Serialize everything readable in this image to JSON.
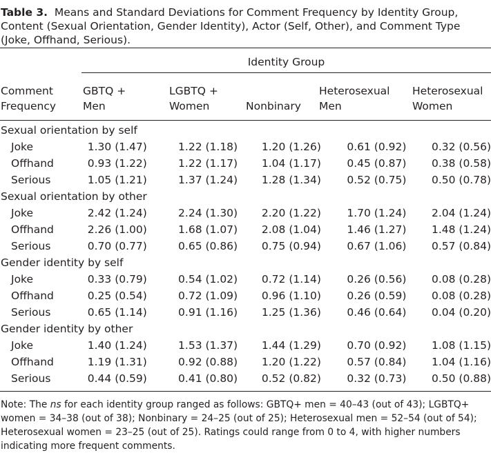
{
  "caption": {
    "label": "Table 3.",
    "text": "Means and Standard Deviations for Comment Frequency by Identity Group, Content (Sexual Orientation, Gender Identity), Actor (Self, Other), and Comment Type (Joke, Offhand, Serious)."
  },
  "header": {
    "group_title": "Identity Group",
    "row_header": [
      "Comment",
      "Frequency"
    ],
    "columns": [
      [
        "GBTQ +",
        "Men"
      ],
      [
        "LGBTQ +",
        "Women"
      ],
      [
        "",
        "Nonbinary"
      ],
      [
        "Heterosexual",
        "Men"
      ],
      [
        "Heterosexual",
        "Women"
      ]
    ]
  },
  "sections": [
    {
      "title": "Sexual orientation by self",
      "rows": [
        {
          "label": "Joke",
          "values": [
            "1.30 (1.47)",
            "1.22 (1.18)",
            "1.20 (1.26)",
            "0.61 (0.92)",
            "0.32 (0.56)"
          ]
        },
        {
          "label": "Offhand",
          "values": [
            "0.93 (1.22)",
            "1.22 (1.17)",
            "1.04 (1.17)",
            "0.45 (0.87)",
            "0.38 (0.58)"
          ]
        },
        {
          "label": "Serious",
          "values": [
            "1.05 (1.21)",
            "1.37 (1.24)",
            "1.28 (1.34)",
            "0.52 (0.75)",
            "0.50 (0.78)"
          ]
        }
      ]
    },
    {
      "title": "Sexual orientation by other",
      "rows": [
        {
          "label": "Joke",
          "values": [
            "2.42 (1.24)",
            "2.24 (1.30)",
            "2.20 (1.22)",
            "1.70 (1.24)",
            "2.04 (1.24)"
          ]
        },
        {
          "label": "Offhand",
          "values": [
            "2.26 (1.00)",
            "1.68 (1.07)",
            "2.08 (1.04)",
            "1.46 (1.27)",
            "1.48 (1.24)"
          ]
        },
        {
          "label": "Serious",
          "values": [
            "0.70 (0.77)",
            "0.65 (0.86)",
            "0.75 (0.94)",
            "0.67 (1.06)",
            "0.57 (0.84)"
          ]
        }
      ]
    },
    {
      "title": "Gender identity by self",
      "rows": [
        {
          "label": "Joke",
          "values": [
            "0.33 (0.79)",
            "0.54 (1.02)",
            "0.72 (1.14)",
            "0.26 (0.56)",
            "0.08 (0.28)"
          ]
        },
        {
          "label": "Offhand",
          "values": [
            "0.25 (0.54)",
            "0.72 (1.09)",
            "0.96 (1.10)",
            "0.26 (0.59)",
            "0.08 (0.28)"
          ]
        },
        {
          "label": "Serious",
          "values": [
            "0.65 (1.14)",
            "0.91 (1.16)",
            "1.25 (1.36)",
            "0.46 (0.64)",
            "0.04 (0.20)"
          ]
        }
      ]
    },
    {
      "title": "Gender identity by other",
      "rows": [
        {
          "label": "Joke",
          "values": [
            "1.40 (1.24)",
            "1.53 (1.37)",
            "1.44 (1.29)",
            "0.70 (0.92)",
            "1.08 (1.15)"
          ]
        },
        {
          "label": "Offhand",
          "values": [
            "1.19 (1.31)",
            "0.92 (0.88)",
            "1.20 (1.22)",
            "0.57 (0.84)",
            "1.04 (1.16)"
          ]
        },
        {
          "label": "Serious",
          "values": [
            "0.44 (0.59)",
            "0.41 (0.80)",
            "0.52 (0.82)",
            "0.32 (0.73)",
            "0.50 (0.88)"
          ]
        }
      ]
    }
  ],
  "note": {
    "prefix": "Note: The ",
    "ns": "ns",
    "rest": " for each identity group ranged as follows: GBTQ+ men = 40–43 (out of 43); LGBTQ+ women = 34–38 (out of 38); Nonbinary = 24–25 (out of 25); Heterosexual men = 52–54 (out of 54); Heterosexual women = 23–25 (out of 25). Ratings could range from 0 to 4, with higher numbers indicating more frequent comments."
  }
}
